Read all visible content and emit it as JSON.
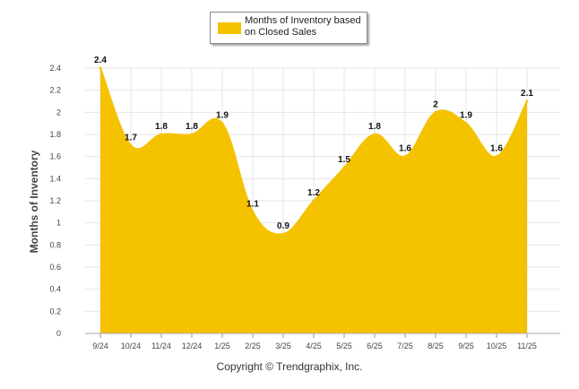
{
  "chart_data": {
    "type": "area",
    "title": "",
    "legend": {
      "label": "Months of Inventory based on Closed Sales",
      "placement": "top-center"
    },
    "xlabel": "",
    "ylabel": "Months of Inventory",
    "categories": [
      "9/24",
      "10/24",
      "11/24",
      "12/24",
      "1/25",
      "2/25",
      "3/25",
      "4/25",
      "5/25",
      "6/25",
      "7/25",
      "8/25",
      "9/25",
      "10/25",
      "11/25"
    ],
    "series": [
      {
        "name": "Months of Inventory based on Closed Sales",
        "values": [
          2.4,
          1.7,
          1.8,
          1.8,
          1.9,
          1.1,
          0.9,
          1.2,
          1.5,
          1.8,
          1.6,
          2,
          1.9,
          1.6,
          2.1
        ],
        "labels": [
          "2.4",
          "1.7",
          "1.8",
          "1.8",
          "1.9",
          "1.1",
          "0.9",
          "1.2",
          "1.5",
          "1.8",
          "1.6",
          "2",
          "1.9",
          "1.6",
          "2.1"
        ]
      }
    ],
    "ylim": [
      0,
      2.4
    ],
    "yticks": [
      0,
      0.2,
      0.4,
      0.6,
      0.8,
      1,
      1.2,
      1.4,
      1.6,
      1.8,
      2,
      2.2,
      2.4
    ],
    "ytick_labels": [
      "0",
      "0.2",
      "0.4",
      "0.6",
      "0.8",
      "1",
      "1.2",
      "1.4",
      "1.6",
      "1.8",
      "2",
      "2.2",
      "2.4"
    ],
    "grid": true,
    "fill_color": "#F5C200",
    "grid_color": "#e6e6e6"
  },
  "footer": {
    "copyright": "Copyright © Trendgraphix, Inc."
  }
}
